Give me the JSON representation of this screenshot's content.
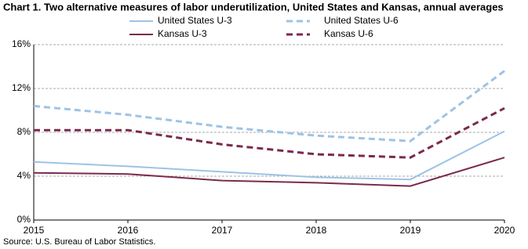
{
  "chart_data": {
    "type": "line",
    "title": "Chart 1. Two alternative measures of labor underutilization, United States and Kansas,  annual averages",
    "source": "Source: U.S. Bureau of Labor Statistics.",
    "x": [
      2015,
      2016,
      2017,
      2018,
      2019,
      2020
    ],
    "xlim": [
      2015,
      2020
    ],
    "xticks": [
      2015,
      2016,
      2017,
      2018,
      2019,
      2020
    ],
    "ylim": [
      0,
      16
    ],
    "yticks": [
      {
        "value": 0,
        "label": "0%"
      },
      {
        "value": 4,
        "label": "4%"
      },
      {
        "value": 8,
        "label": "8%"
      },
      {
        "value": 12,
        "label": "12%"
      },
      {
        "value": 16,
        "label": "16%"
      }
    ],
    "grid": true,
    "series": [
      {
        "name": "United States U-3",
        "color": "#9dc3e6",
        "style": "solid",
        "values": [
          5.3,
          4.9,
          4.4,
          3.9,
          3.7,
          8.1
        ]
      },
      {
        "name": "United States U-6",
        "color": "#9dc3e6",
        "style": "dashed",
        "values": [
          10.4,
          9.6,
          8.5,
          7.7,
          7.2,
          13.6
        ]
      },
      {
        "name": "Kansas U-3",
        "color": "#7b2a4e",
        "style": "solid",
        "values": [
          4.3,
          4.2,
          3.6,
          3.4,
          3.1,
          5.7
        ]
      },
      {
        "name": "Kansas U-6",
        "color": "#7b2a4e",
        "style": "dashed",
        "values": [
          8.2,
          8.2,
          6.9,
          6.0,
          5.7,
          10.2
        ]
      }
    ]
  }
}
